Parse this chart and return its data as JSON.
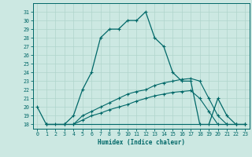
{
  "xlabel": "Humidex (Indice chaleur)",
  "xlim": [
    -0.5,
    23.5
  ],
  "ylim": [
    17.5,
    32.0
  ],
  "yticks": [
    18,
    19,
    20,
    21,
    22,
    23,
    24,
    25,
    26,
    27,
    28,
    29,
    30,
    31
  ],
  "xticks": [
    0,
    1,
    2,
    3,
    4,
    5,
    6,
    7,
    8,
    9,
    10,
    11,
    12,
    13,
    14,
    15,
    16,
    17,
    18,
    19,
    20,
    21,
    22,
    23
  ],
  "bg_color": "#cce8e2",
  "line_color": "#006868",
  "grid_color": "#b0d4cc",
  "series_main": {
    "x": [
      0,
      1,
      2,
      3,
      4,
      5,
      6,
      7,
      8,
      9,
      10,
      11,
      12,
      13,
      14,
      15,
      16,
      17,
      18,
      19,
      20,
      21,
      22,
      23
    ],
    "y": [
      20,
      18,
      18,
      18,
      19,
      22,
      24,
      28,
      29,
      29,
      30,
      30,
      31,
      28,
      27,
      24,
      23,
      23,
      18,
      18,
      21,
      19,
      18,
      18
    ]
  },
  "series_upper": {
    "x": [
      1,
      3,
      4,
      5,
      6,
      7,
      8,
      9,
      10,
      11,
      12,
      13,
      14,
      15,
      16,
      17,
      18,
      19,
      20,
      21,
      22,
      23
    ],
    "y": [
      18,
      18,
      18,
      19,
      19.5,
      20,
      20.5,
      21,
      21.5,
      21.8,
      22,
      22.5,
      22.8,
      23,
      23.2,
      23.3,
      23,
      21,
      19,
      18,
      18,
      18
    ]
  },
  "series_lower": {
    "x": [
      1,
      3,
      4,
      5,
      6,
      7,
      8,
      9,
      10,
      11,
      12,
      13,
      14,
      15,
      16,
      17,
      18,
      19,
      20,
      21,
      22,
      23
    ],
    "y": [
      18,
      18,
      18,
      18.5,
      19,
      19.3,
      19.7,
      20,
      20.3,
      20.7,
      21,
      21.3,
      21.5,
      21.7,
      21.8,
      21.9,
      21,
      19.5,
      18,
      18,
      18,
      18
    ]
  },
  "series_flat": {
    "x": [
      1,
      22
    ],
    "y": [
      18,
      18
    ]
  }
}
